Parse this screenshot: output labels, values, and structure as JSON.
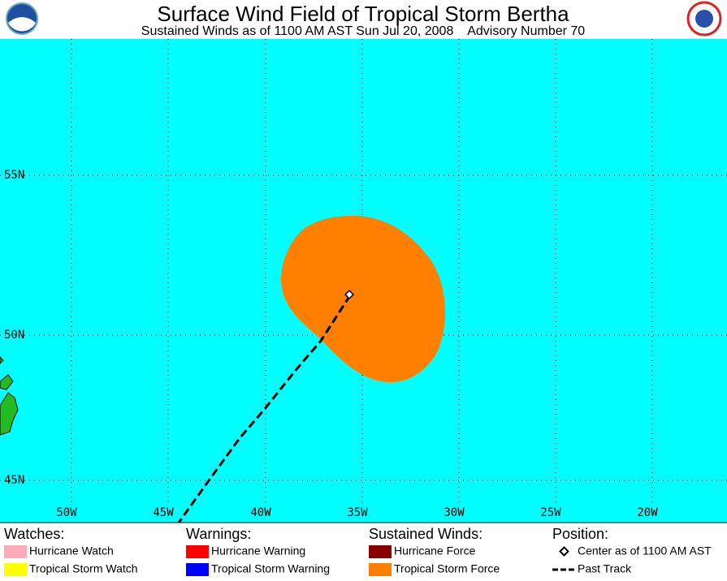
{
  "header": {
    "title": "Surface Wind Field of Tropical Storm Bertha",
    "subtitle": "Sustained Winds as of 1100 AM AST Sun Jul 20, 2008    Advisory Number 70"
  },
  "map": {
    "lat_labels": [
      "55N",
      "50N",
      "45N"
    ],
    "lon_labels": [
      "50W",
      "45W",
      "40W",
      "35W",
      "30W",
      "25W",
      "20W"
    ]
  },
  "legend": {
    "watches": {
      "heading": "Watches:",
      "items": [
        "Hurricane Watch",
        "Tropical Storm Watch"
      ]
    },
    "warnings": {
      "heading": "Warnings:",
      "items": [
        "Hurricane Warning",
        "Tropical Storm Warning"
      ]
    },
    "winds": {
      "heading": "Sustained Winds:",
      "items": [
        "Hurricane Force",
        "Tropical Storm Force"
      ]
    },
    "position": {
      "heading": "Position:",
      "items": [
        "Center as of 1100 AM AST",
        "Past Track"
      ]
    }
  }
}
